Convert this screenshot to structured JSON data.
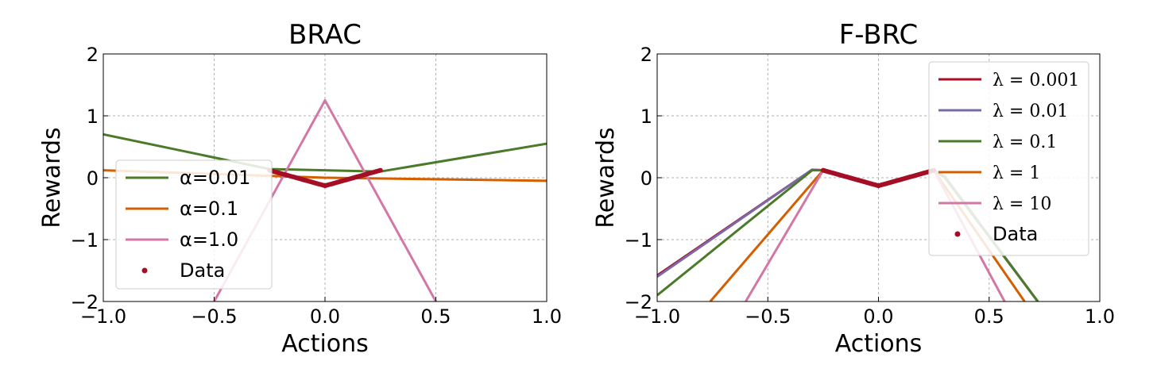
{
  "chart_data": [
    {
      "type": "line",
      "title": "BRAC",
      "xlabel": "Actions",
      "ylabel": "Rewards",
      "xlim": [
        -1.0,
        1.0
      ],
      "ylim": [
        -2,
        2
      ],
      "xticks": [
        -1.0,
        -0.5,
        0.0,
        0.5,
        1.0
      ],
      "xtick_labels": [
        "−1.0",
        "−0.5",
        "0.0",
        "0.5",
        "1.0"
      ],
      "yticks": [
        -2,
        -1,
        0,
        1,
        2
      ],
      "ytick_labels": [
        "−2",
        "−1",
        "0",
        "1",
        "2"
      ],
      "grid": true,
      "legend_position": "lower-left",
      "series": [
        {
          "name": "α=0.01",
          "color": "#4a7a2a",
          "x": [
            -1.0,
            -0.25,
            0.25,
            1.0
          ],
          "y": [
            0.7,
            0.14,
            0.1,
            0.55
          ]
        },
        {
          "name": "α=0.1",
          "color": "#d45f00",
          "x": [
            -1.0,
            0.0,
            1.0
          ],
          "y": [
            0.12,
            0.0,
            -0.05
          ]
        },
        {
          "name": "α=1.0",
          "color": "#d377a6",
          "x": [
            -0.5,
            0.0,
            0.5
          ],
          "y": [
            -2.0,
            1.25,
            -2.0
          ]
        }
      ],
      "data_series": {
        "name": "Data",
        "color": "#a50f26",
        "x": [
          -0.25,
          0.0,
          0.25
        ],
        "y": [
          0.12,
          -0.13,
          0.12
        ]
      }
    },
    {
      "type": "line",
      "title": "F-BRC",
      "xlabel": "Actions",
      "ylabel": "Rewards",
      "xlim": [
        -1.0,
        1.0
      ],
      "ylim": [
        -2,
        2
      ],
      "xticks": [
        -1.0,
        -0.5,
        0.0,
        0.5,
        1.0
      ],
      "xtick_labels": [
        "−1.0",
        "−0.5",
        "0.0",
        "0.5",
        "1.0"
      ],
      "yticks": [
        -2,
        -1,
        0,
        1,
        2
      ],
      "ytick_labels": [
        "−2",
        "−1",
        "0",
        "1",
        "2"
      ],
      "grid": true,
      "legend_position": "top-right",
      "series": [
        {
          "name": "λ = 0.001",
          "color": "#a50f26",
          "x": [
            -1.0,
            -0.3,
            -0.25,
            0.0,
            0.25,
            0.3,
            0.72
          ],
          "y": [
            -1.58,
            0.13,
            0.12,
            -0.13,
            0.12,
            0.02,
            -2.0
          ]
        },
        {
          "name": "λ = 0.01",
          "color": "#7a6aab",
          "x": [
            -1.0,
            -0.3,
            -0.25,
            0.0,
            0.25,
            0.3,
            0.72
          ],
          "y": [
            -1.6,
            0.13,
            0.12,
            -0.13,
            0.12,
            0.02,
            -2.0
          ]
        },
        {
          "name": "λ = 0.1",
          "color": "#4a7a2a",
          "x": [
            -1.0,
            -0.3,
            -0.25,
            0.0,
            0.25,
            0.3,
            0.72
          ],
          "y": [
            -1.9,
            0.12,
            0.12,
            -0.13,
            0.12,
            0.0,
            -2.0
          ]
        },
        {
          "name": "λ = 1",
          "color": "#d45f00",
          "x": [
            -0.76,
            -0.25,
            0.0,
            0.25,
            0.66
          ],
          "y": [
            -2.0,
            0.12,
            -0.13,
            0.12,
            -2.0
          ]
        },
        {
          "name": "λ = 10",
          "color": "#d377a6",
          "x": [
            -0.6,
            -0.25,
            0.0,
            0.25,
            0.57
          ],
          "y": [
            -2.0,
            0.12,
            -0.13,
            0.12,
            -2.0
          ]
        }
      ],
      "data_series": {
        "name": "Data",
        "color": "#a50f26",
        "x": [
          -0.25,
          0.0,
          0.25
        ],
        "y": [
          0.12,
          -0.13,
          0.12
        ]
      }
    }
  ]
}
